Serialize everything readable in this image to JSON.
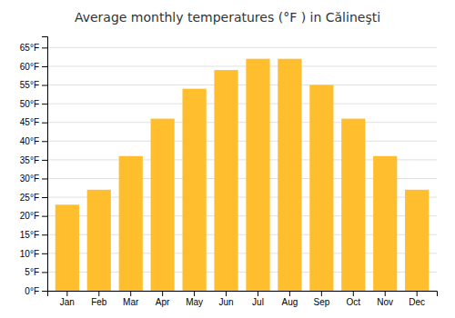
{
  "chart_data": {
    "type": "bar",
    "title": "Average monthly temperatures (°F ) in Călineşti",
    "categories": [
      "Jan",
      "Feb",
      "Mar",
      "Apr",
      "May",
      "Jun",
      "Jul",
      "Aug",
      "Sep",
      "Oct",
      "Nov",
      "Dec"
    ],
    "values": [
      23,
      27,
      36,
      46,
      54,
      59,
      62,
      62,
      55,
      46,
      36,
      27
    ],
    "color": "#FFBE2D",
    "ylim": [
      0,
      68
    ],
    "yticks": [
      {
        "value": 0,
        "label": "0°F"
      },
      {
        "value": 5,
        "label": "5°F"
      },
      {
        "value": 10,
        "label": "10°F"
      },
      {
        "value": 15,
        "label": "15°F"
      },
      {
        "value": 20,
        "label": "20°F"
      },
      {
        "value": 25,
        "label": "25°F"
      },
      {
        "value": 30,
        "label": "30°F"
      },
      {
        "value": 35,
        "label": "35°F"
      },
      {
        "value": 40,
        "label": "40°F"
      },
      {
        "value": 45,
        "label": "45°F"
      },
      {
        "value": 50,
        "label": "50°F"
      },
      {
        "value": 55,
        "label": "55°F"
      },
      {
        "value": 60,
        "label": "60°F"
      },
      {
        "value": 65,
        "label": "65°F"
      }
    ],
    "grid": true
  }
}
